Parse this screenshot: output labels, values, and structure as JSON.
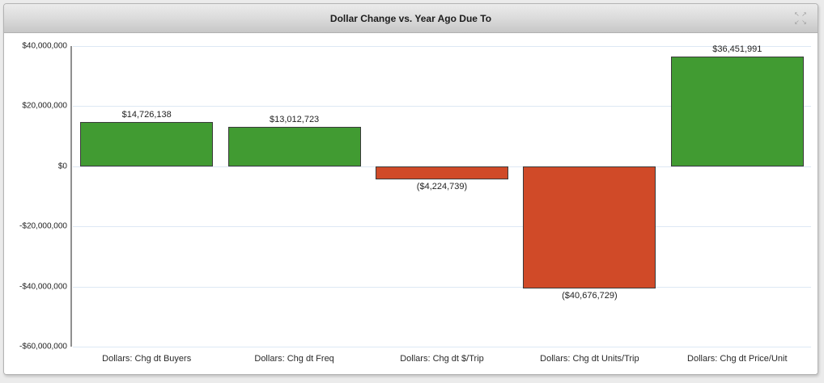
{
  "header": {
    "title": "Dollar Change vs. Year Ago Due To",
    "expand_icon_glyphs": [
      "↖",
      "↗",
      "↙",
      "↘"
    ]
  },
  "colors": {
    "positive_bar": "#419b32",
    "negative_bar": "#d04a28",
    "bar_border": "#3a3a3a",
    "gridline": "#dde8f4",
    "axis_line": "#909090",
    "header_gradient_top": "#ececec",
    "header_gradient_bottom": "#c7c7c7",
    "page_background": "#ebebeb"
  },
  "chart_data": {
    "type": "bar",
    "title": "Dollar Change vs. Year Ago Due To",
    "categories": [
      "Dollars: Chg dt Buyers",
      "Dollars: Chg dt Freq",
      "Dollars: Chg dt $/Trip",
      "Dollars: Chg dt Units/Trip",
      "Dollars: Chg dt Price/Unit"
    ],
    "values": [
      14726138,
      13012723,
      -4224739,
      -40676729,
      36451991
    ],
    "value_labels": [
      "$14,726,138",
      "$13,012,723",
      "($4,224,739)",
      "($40,676,729)",
      "$36,451,991"
    ],
    "xlabel": "",
    "ylabel": "",
    "ylim": [
      -60000000,
      40000000
    ],
    "ytick_step": 20000000,
    "ytick_labels": [
      "$40,000,000",
      "$20,000,000",
      "$0",
      "-$20,000,000",
      "-$40,000,000",
      "-$60,000,000"
    ],
    "grid": true,
    "legend": false
  }
}
